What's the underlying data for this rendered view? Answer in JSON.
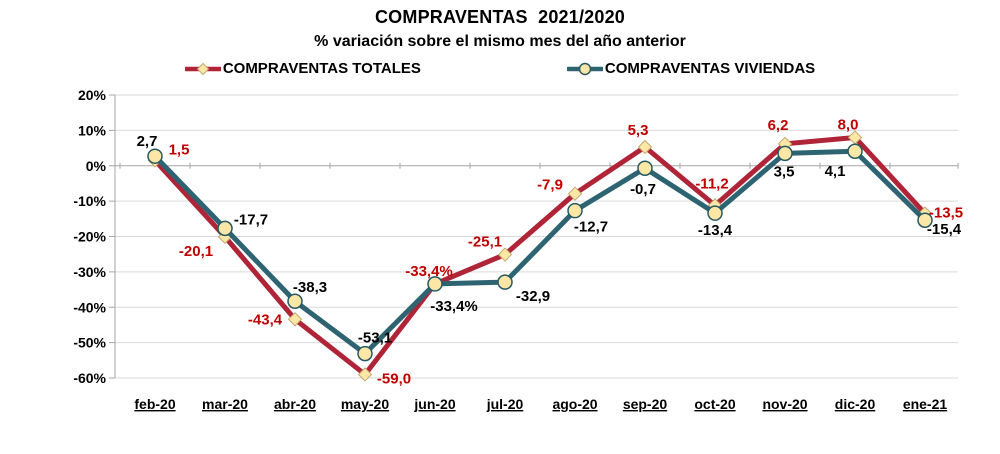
{
  "title": "COMPRAVENTAS  2021/2020",
  "subtitle": "% variación sobre el mismo mes del año anterior",
  "colors": {
    "grid": "#d9d9d9",
    "axis": "#a6a6a6",
    "zero_axis": "#a6a6a6",
    "text": "#000000",
    "totales_line": "#b02438",
    "totales_label": "#c00000",
    "viviendas_line": "#2e6472",
    "viviendas_label": "#000000",
    "marker_fill": "#fce7a6"
  },
  "chart_data": {
    "type": "line",
    "title": "COMPRAVENTAS  2021/2020",
    "subtitle": "% variación sobre el mismo mes del año anterior",
    "categories": [
      "feb-20",
      "mar-20",
      "abr-20",
      "may-20",
      "jun-20",
      "jul-20",
      "ago-20",
      "sep-20",
      "oct-20",
      "nov-20",
      "dic-20",
      "ene-21"
    ],
    "series": [
      {
        "name": "COMPRAVENTAS TOTALES",
        "marker": "diamond",
        "color": "#b02438",
        "label_color": "#c00000",
        "marker_fill": "#fce7a6",
        "marker_stroke": "#c0a96e",
        "values": [
          1.5,
          -20.1,
          -43.4,
          -59.0,
          -33.4,
          -25.1,
          -7.9,
          5.3,
          -11.2,
          6.2,
          8.0,
          -13.5
        ],
        "labels": [
          "1,5",
          "-20,1",
          "-43,4",
          "-59,0",
          "-33,4%",
          "-25,1",
          "-7,9",
          "5,3",
          "-11,2",
          "6,2",
          "8,0",
          "-13,5"
        ],
        "label_offsets": [
          [
            24,
            -11
          ],
          [
            -29,
            14
          ],
          [
            -30,
            0
          ],
          [
            29,
            4
          ],
          [
            -6,
            -13
          ],
          [
            -20,
            -13
          ],
          [
            -25,
            -9
          ],
          [
            -7,
            -17
          ],
          [
            -3,
            -22
          ],
          [
            -7,
            -19
          ],
          [
            -7,
            -13
          ],
          [
            21,
            -1
          ]
        ]
      },
      {
        "name": "COMPRAVENTAS VIVIENDAS",
        "marker": "circle",
        "color": "#2e6472",
        "label_color": "#000000",
        "marker_fill": "#fce7a6",
        "marker_stroke": "#275863",
        "values": [
          2.7,
          -17.7,
          -38.3,
          -53.1,
          -33.4,
          -32.9,
          -12.7,
          -0.7,
          -13.4,
          3.5,
          4.1,
          -15.4
        ],
        "labels": [
          "2,7",
          "-17,7",
          "-38,3",
          "-53,1",
          "-33,4%",
          "-32,9",
          "-12,7",
          "-0,7",
          "-13,4",
          "3,5",
          "4,1",
          "-15,4"
        ],
        "label_offsets": [
          [
            -8,
            -15
          ],
          [
            26,
            -9
          ],
          [
            15,
            -14
          ],
          [
            10,
            -16
          ],
          [
            19,
            22
          ],
          [
            28,
            14
          ],
          [
            16,
            16
          ],
          [
            -2,
            21
          ],
          [
            0,
            17
          ],
          [
            -1,
            18
          ],
          [
            -20,
            20
          ],
          [
            19,
            9
          ]
        ]
      }
    ],
    "ylim": [
      -60,
      20
    ],
    "ytick_step": 10,
    "ytick_labels": [
      "20%",
      "10%",
      "0%",
      "-10%",
      "-20%",
      "-30%",
      "-40%",
      "-50%",
      "-60%"
    ],
    "grid": true,
    "legend_position": "top"
  }
}
